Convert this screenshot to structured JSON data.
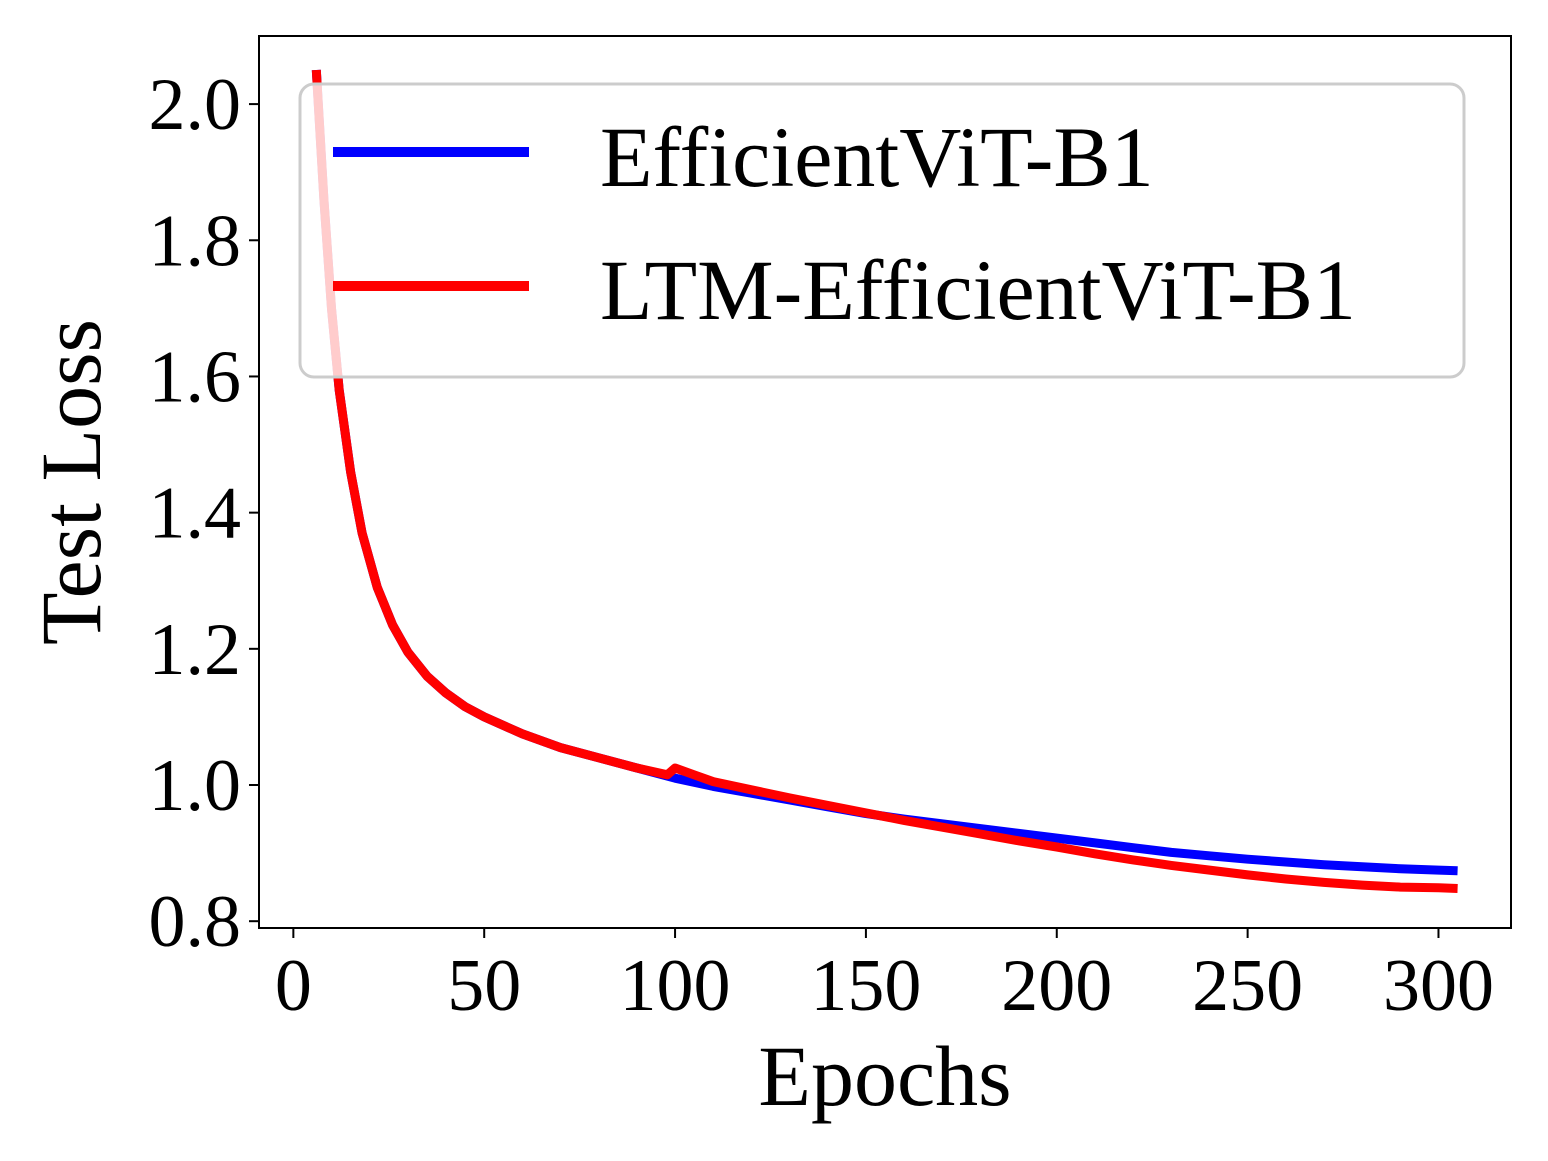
{
  "chart_data": {
    "type": "line",
    "title": "",
    "xlabel": "Epochs",
    "ylabel": "Test Loss",
    "xlim": [
      -9,
      319
    ],
    "ylim": [
      0.79,
      2.1
    ],
    "xticks": [
      0,
      50,
      100,
      150,
      200,
      250,
      300
    ],
    "xtick_labels": [
      "0",
      "50",
      "100",
      "150",
      "200",
      "250",
      "300"
    ],
    "yticks": [
      0.8,
      1.0,
      1.2,
      1.4,
      1.6,
      1.8,
      2.0
    ],
    "ytick_labels": [
      "0.8",
      "1.0",
      "1.2",
      "1.4",
      "1.6",
      "1.8",
      "2.0"
    ],
    "grid": false,
    "legend_position": "top-right",
    "series": [
      {
        "name": "EfficientViT-B1",
        "color": "#0000ff",
        "x": [
          6,
          8,
          10,
          12,
          15,
          18,
          22,
          26,
          30,
          35,
          40,
          45,
          50,
          60,
          70,
          80,
          90,
          100,
          110,
          120,
          130,
          140,
          150,
          160,
          170,
          180,
          190,
          200,
          210,
          220,
          230,
          240,
          250,
          260,
          270,
          280,
          290,
          300,
          305
        ],
        "y": [
          2.05,
          1.86,
          1.7,
          1.58,
          1.46,
          1.37,
          1.29,
          1.235,
          1.195,
          1.16,
          1.135,
          1.115,
          1.1,
          1.075,
          1.055,
          1.04,
          1.025,
          1.01,
          0.998,
          0.988,
          0.978,
          0.968,
          0.958,
          0.95,
          0.943,
          0.936,
          0.929,
          0.922,
          0.915,
          0.908,
          0.901,
          0.896,
          0.891,
          0.887,
          0.883,
          0.88,
          0.877,
          0.875,
          0.874
        ]
      },
      {
        "name": "LTM-EfficientViT-B1",
        "color": "#ff0000",
        "x": [
          6,
          8,
          10,
          12,
          15,
          18,
          22,
          26,
          30,
          35,
          40,
          45,
          50,
          60,
          70,
          80,
          90,
          98,
          100,
          105,
          110,
          120,
          130,
          140,
          150,
          160,
          170,
          180,
          190,
          200,
          210,
          220,
          230,
          240,
          250,
          260,
          270,
          280,
          290,
          300,
          305
        ],
        "y": [
          2.05,
          1.86,
          1.7,
          1.58,
          1.46,
          1.37,
          1.29,
          1.235,
          1.195,
          1.16,
          1.135,
          1.115,
          1.1,
          1.075,
          1.055,
          1.04,
          1.025,
          1.015,
          1.025,
          1.015,
          1.005,
          0.993,
          0.981,
          0.97,
          0.959,
          0.948,
          0.938,
          0.928,
          0.918,
          0.909,
          0.899,
          0.89,
          0.882,
          0.875,
          0.868,
          0.862,
          0.857,
          0.853,
          0.85,
          0.849,
          0.848
        ]
      }
    ]
  }
}
